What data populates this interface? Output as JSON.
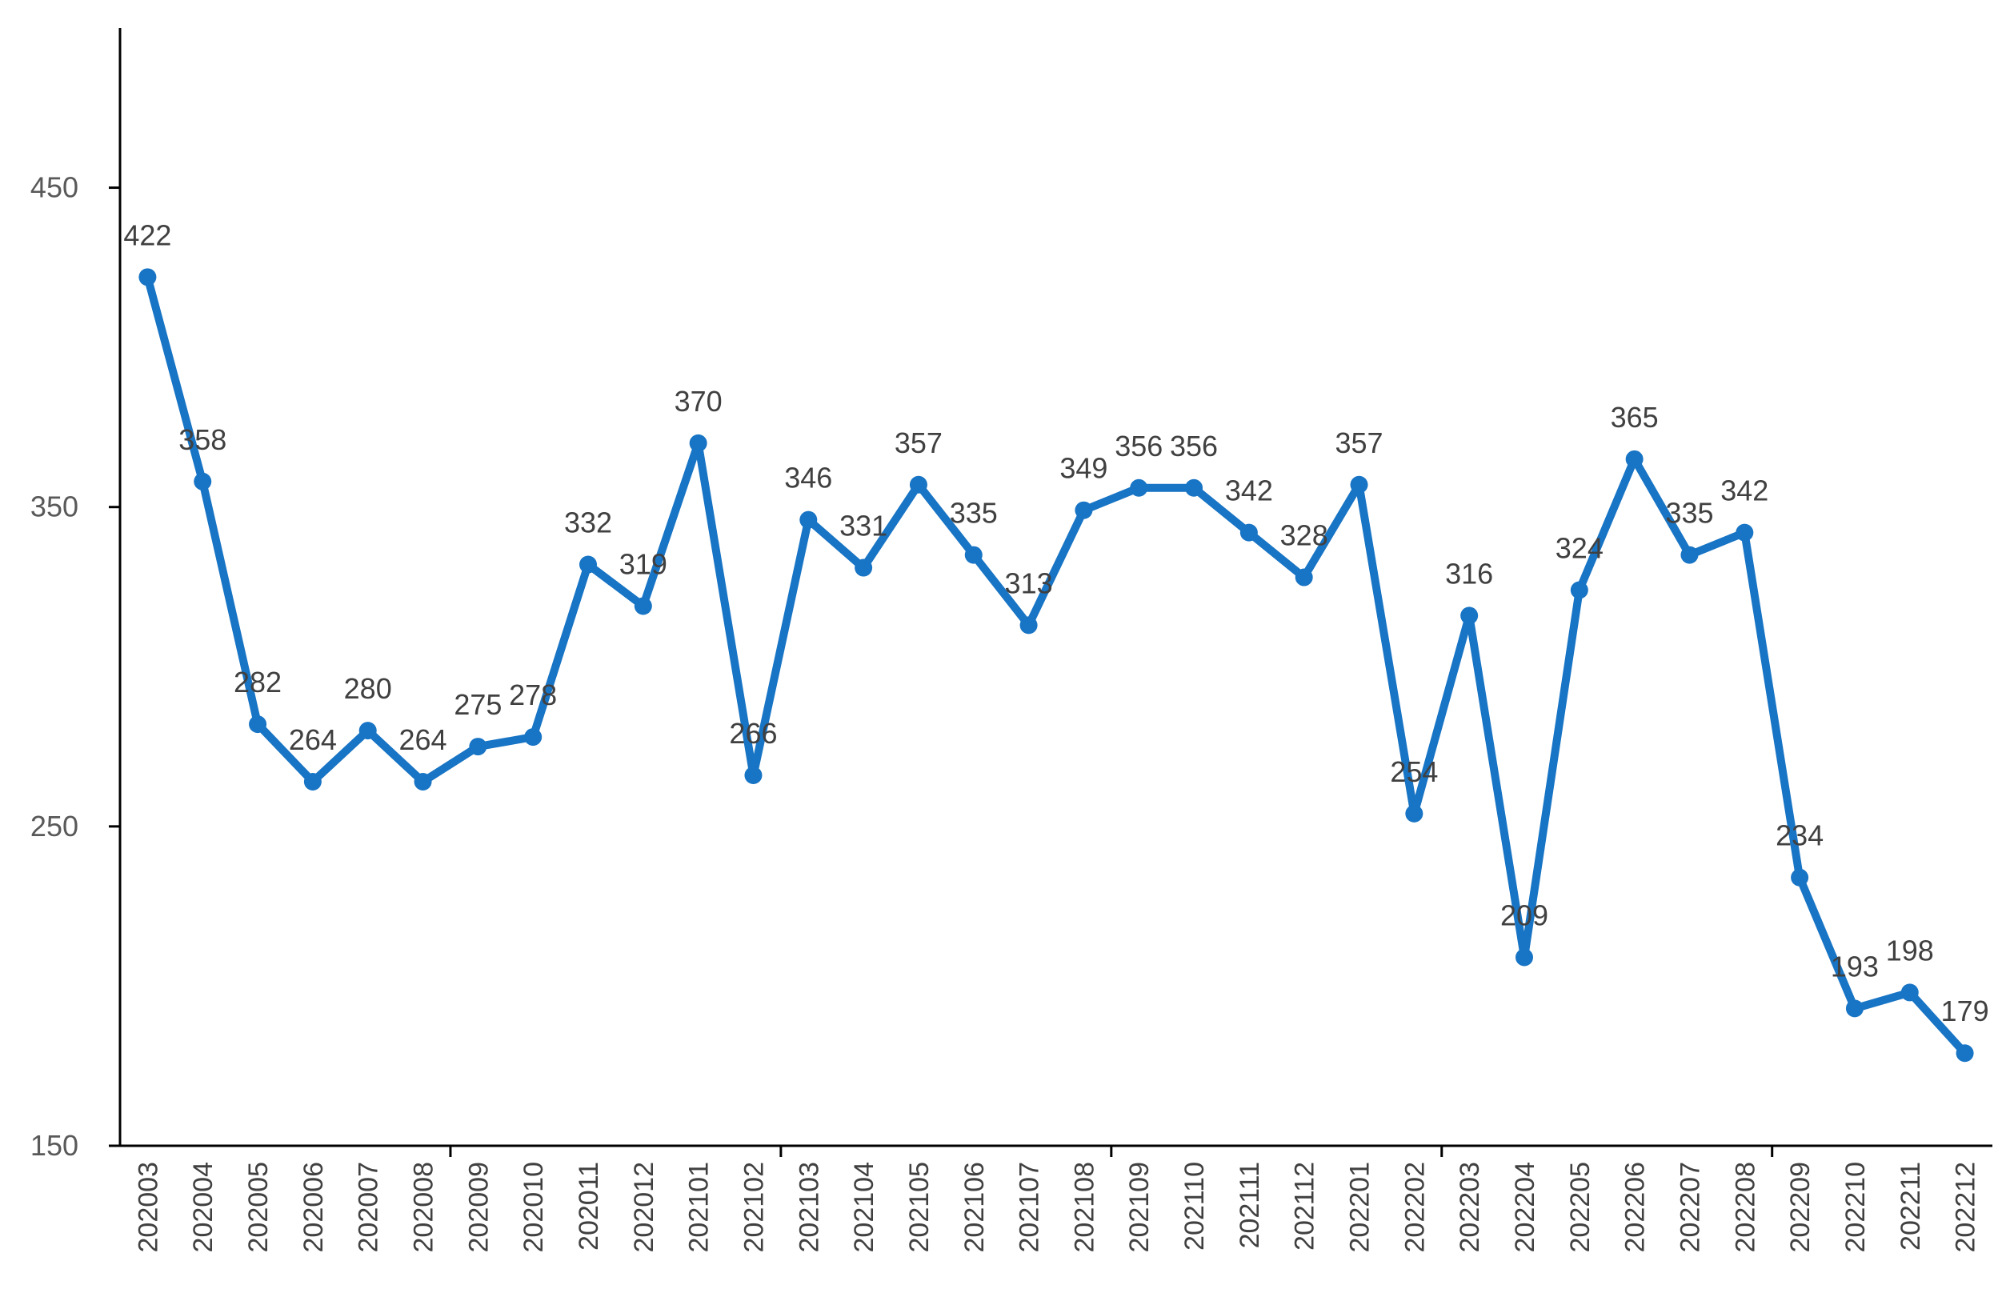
{
  "chart_data": {
    "type": "line",
    "title": "",
    "xlabel": "",
    "ylabel": "",
    "ylim": [
      150,
      500
    ],
    "yticks": [
      150,
      250,
      350,
      450
    ],
    "grid": false,
    "legend": "none",
    "categories": [
      "202003",
      "202004",
      "202005",
      "202006",
      "202007",
      "202008",
      "202009",
      "202010",
      "202011",
      "202012",
      "202101",
      "202102",
      "202103",
      "202104",
      "202105",
      "202106",
      "202107",
      "202108",
      "202109",
      "202110",
      "202111",
      "202112",
      "202201",
      "202202",
      "202203",
      "202204",
      "202205",
      "202206",
      "202207",
      "202208",
      "202209",
      "202210",
      "202211",
      "202212"
    ],
    "series": [
      {
        "values": [
          422,
          358,
          282,
          264,
          280,
          264,
          275,
          278,
          332,
          319,
          370,
          266,
          346,
          331,
          357,
          335,
          313,
          349,
          356,
          356,
          342,
          328,
          357,
          254,
          316,
          209,
          324,
          365,
          335,
          342,
          234,
          193,
          198,
          179
        ],
        "color": "#1874c4"
      }
    ],
    "label_color": "#404040",
    "axis_color": "#000000"
  }
}
